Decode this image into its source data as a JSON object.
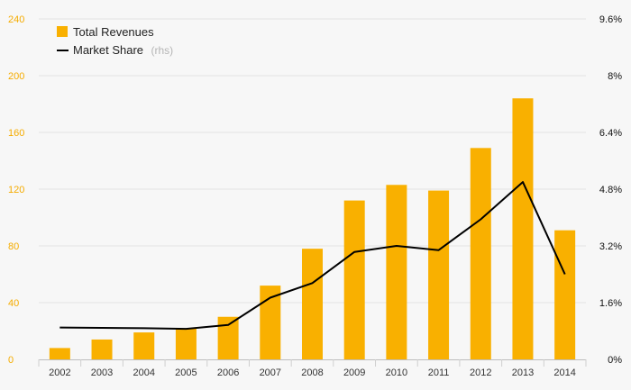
{
  "chart_data": {
    "type": "bar",
    "categories": [
      "2002",
      "2003",
      "2004",
      "2005",
      "2006",
      "2007",
      "2008",
      "2009",
      "2010",
      "2011",
      "2012",
      "2013",
      "2014"
    ],
    "series": [
      {
        "name": "Total Revenues",
        "type": "bar",
        "axis": "left",
        "color": "#f9b000",
        "values": [
          8,
          14,
          19,
          22,
          30,
          52,
          78,
          112,
          123,
          119,
          149,
          184,
          91
        ]
      },
      {
        "name": "Market Share",
        "name_suffix": "(rhs)",
        "type": "line",
        "axis": "right",
        "color": "#000000",
        "values": [
          0.9,
          0.89,
          0.88,
          0.86,
          0.97,
          1.74,
          2.15,
          3.03,
          3.2,
          3.08,
          3.95,
          5.0,
          2.4
        ]
      }
    ],
    "yaxis_left": {
      "range": [
        0,
        240
      ],
      "ticks": [
        0,
        40,
        80,
        120,
        160,
        200,
        240
      ],
      "tick_labels": [
        "0",
        "40",
        "80",
        "120",
        "160",
        "200",
        "240"
      ],
      "color": "#f5ac00"
    },
    "yaxis_right": {
      "range": [
        0,
        9.6
      ],
      "ticks": [
        0,
        1.6,
        3.2,
        4.8,
        6.4,
        8,
        9.6
      ],
      "tick_labels": [
        "0%",
        "1.6%",
        "3.2%",
        "4.8%",
        "6.4%",
        "8%",
        "9.6%"
      ],
      "color": "#111111"
    },
    "title": "",
    "xlabel": "",
    "ylabel": "",
    "grid": true,
    "legend_position": "top-left"
  }
}
